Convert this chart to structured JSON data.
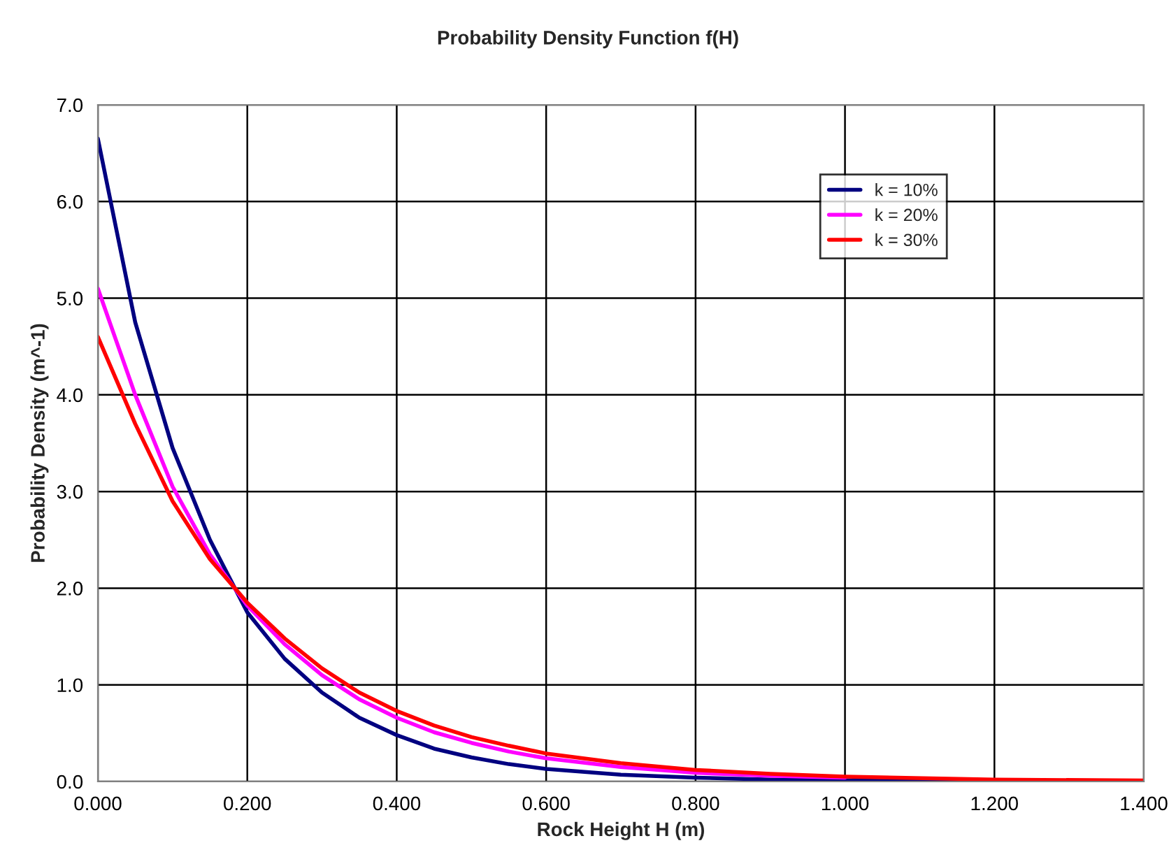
{
  "chart_data": {
    "type": "line",
    "title": "Probability Density Function f(H)",
    "xlabel": "Rock Height H (m)",
    "ylabel": "Probability Density (m^-1)",
    "x": [
      0,
      0.025,
      0.05,
      0.1,
      0.15,
      0.2,
      0.25,
      0.3,
      0.35,
      0.4,
      0.45,
      0.5,
      0.55,
      0.6,
      0.7,
      0.8,
      0.9,
      1.0,
      1.2,
      1.4
    ],
    "series": [
      {
        "name": "k = 10%",
        "color": "#000080",
        "values": [
          6.65,
          5.7,
          4.75,
          3.45,
          2.5,
          1.75,
          1.27,
          0.92,
          0.66,
          0.48,
          0.34,
          0.25,
          0.18,
          0.13,
          0.07,
          0.04,
          0.02,
          0.01,
          0.0,
          0.0
        ]
      },
      {
        "name": "k = 20%",
        "color": "#ff00ff",
        "values": [
          5.1,
          4.55,
          4.0,
          3.05,
          2.35,
          1.82,
          1.42,
          1.1,
          0.85,
          0.66,
          0.51,
          0.4,
          0.31,
          0.24,
          0.15,
          0.09,
          0.06,
          0.04,
          null,
          null
        ]
      },
      {
        "name": "k = 30%",
        "color": "#ff0000",
        "values": [
          4.6,
          4.15,
          3.7,
          2.9,
          2.3,
          1.85,
          1.48,
          1.17,
          0.92,
          0.73,
          0.58,
          0.46,
          0.37,
          0.29,
          0.19,
          0.12,
          0.08,
          0.05,
          0.02,
          0.01
        ]
      }
    ],
    "xlim": [
      0,
      1.4
    ],
    "xticks": [
      {
        "value": 0,
        "label": "0.000"
      },
      {
        "value": 0.2,
        "label": "0.200"
      },
      {
        "value": 0.4,
        "label": "0.400"
      },
      {
        "value": 0.6,
        "label": "0.600"
      },
      {
        "value": 0.8,
        "label": "0.800"
      },
      {
        "value": 1.0,
        "label": "1.000"
      },
      {
        "value": 1.2,
        "label": "1.200"
      },
      {
        "value": 1.4,
        "label": "1.400"
      }
    ],
    "ylim": [
      0,
      7
    ],
    "yticks": [
      {
        "value": 0,
        "label": "0.0"
      },
      {
        "value": 1,
        "label": "1.0"
      },
      {
        "value": 2,
        "label": "2.0"
      },
      {
        "value": 3,
        "label": "3.0"
      },
      {
        "value": 4,
        "label": "4.0"
      },
      {
        "value": 5,
        "label": "5.0"
      },
      {
        "value": 6,
        "label": "6.0"
      },
      {
        "value": 7,
        "label": "7.0"
      }
    ],
    "grid": true,
    "legend": "top right",
    "marker": "none",
    "line_style": "solid"
  }
}
